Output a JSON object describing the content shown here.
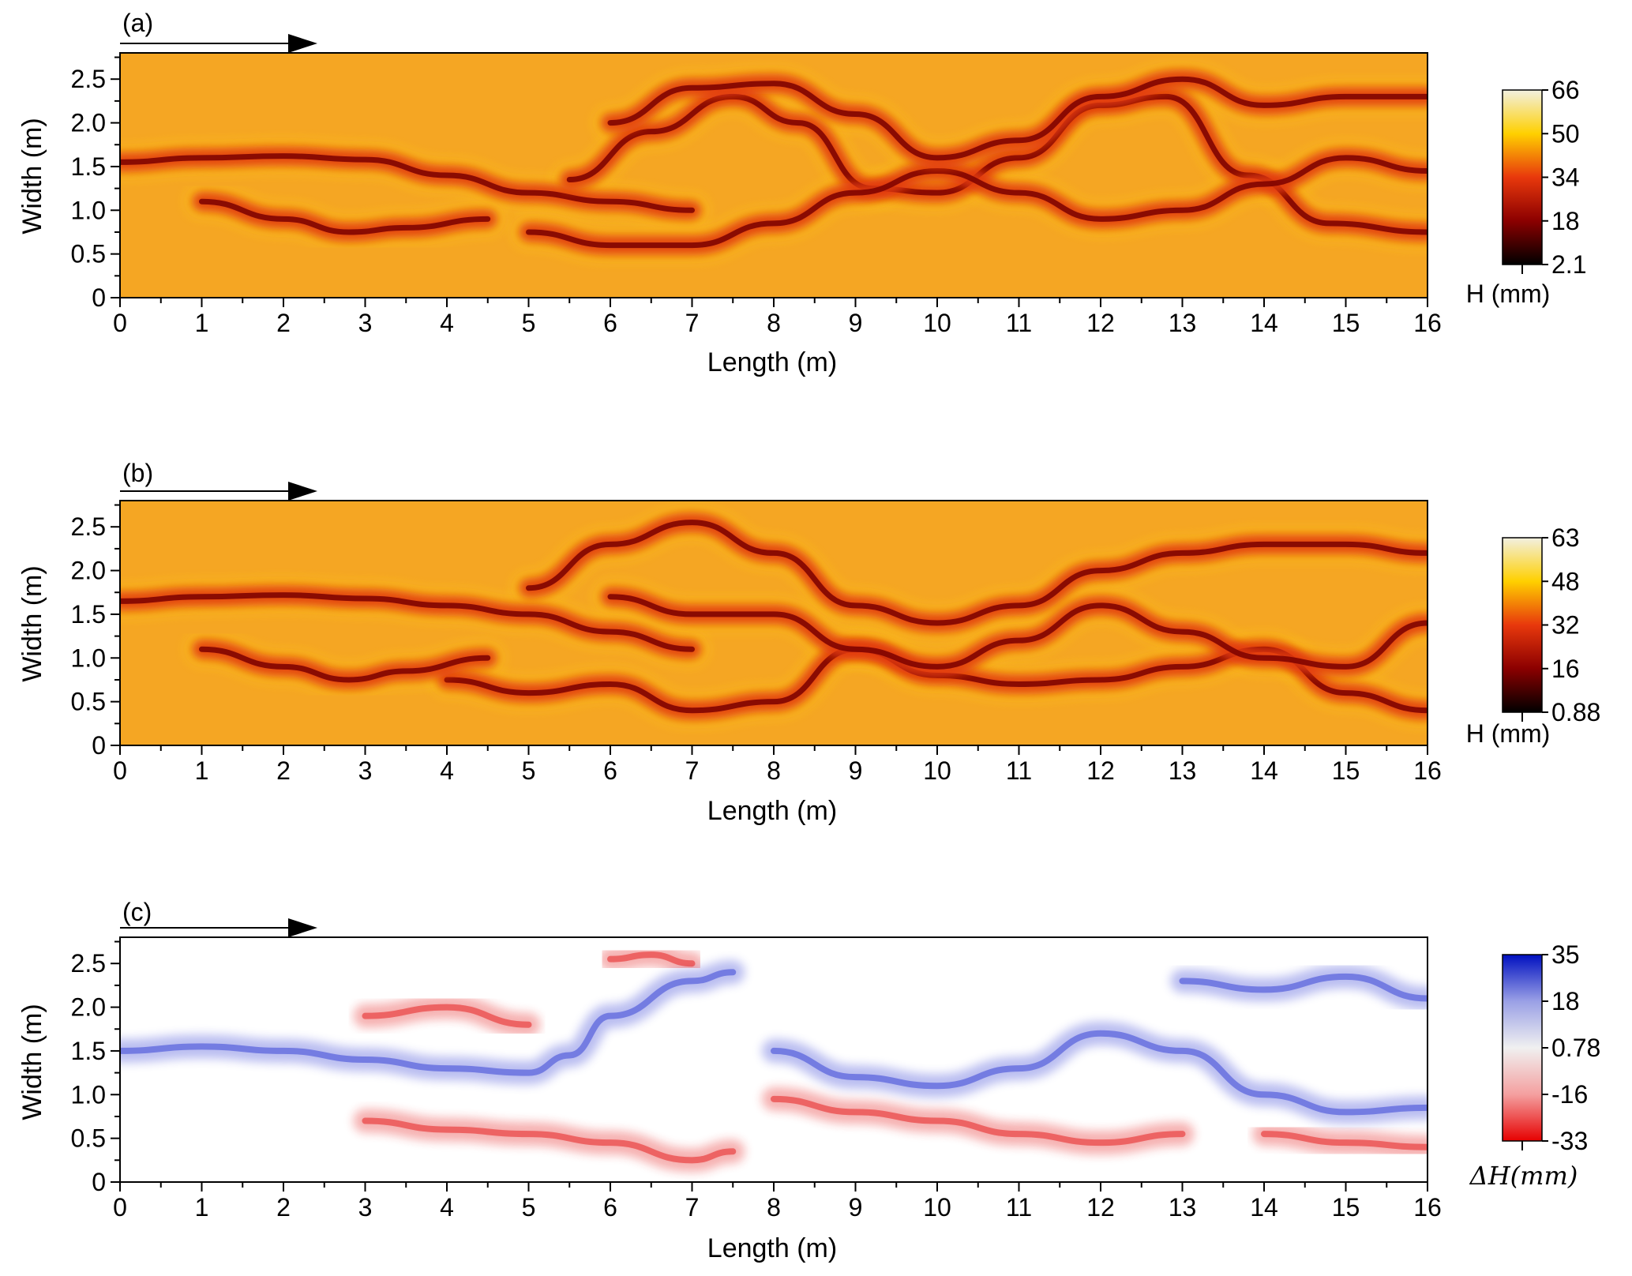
{
  "chart_data": [
    {
      "type": "heatmap",
      "panel_label": "(a)",
      "xlabel": "Length (m)",
      "ylabel": "Width (m)",
      "xlim": [
        0,
        16
      ],
      "ylim": [
        0,
        2.8
      ],
      "xticks": [
        "0",
        "1",
        "2",
        "3",
        "4",
        "5",
        "6",
        "7",
        "8",
        "9",
        "10",
        "11",
        "12",
        "13",
        "14",
        "15",
        "16"
      ],
      "yticks": [
        "0",
        "0.5",
        "1.0",
        "1.5",
        "2.0",
        "2.5"
      ],
      "flow_arrow": true,
      "colorbar": {
        "label": "H (mm)",
        "ticks": [
          "66",
          "50",
          "34",
          "18",
          "2.1"
        ],
        "range": [
          2.1,
          66
        ],
        "colormap": [
          "#000000",
          "#8b0000",
          "#e8380c",
          "#ffd000",
          "#f2f0e0"
        ]
      },
      "background_color": "#f5a623",
      "channels": [
        {
          "x": [
            0,
            1,
            2,
            3,
            4,
            5,
            6,
            7
          ],
          "y": [
            1.55,
            1.6,
            1.62,
            1.58,
            1.4,
            1.2,
            1.1,
            1.0
          ]
        },
        {
          "x": [
            5.5,
            6.5,
            7.5,
            8.3,
            9.2,
            10,
            11,
            12,
            12.8,
            13.8,
            14.8,
            16
          ],
          "y": [
            1.35,
            1.9,
            2.3,
            2.0,
            1.25,
            1.2,
            1.6,
            2.2,
            2.3,
            1.4,
            0.85,
            0.75
          ]
        },
        {
          "x": [
            5,
            6,
            7,
            8,
            9,
            10,
            11,
            12,
            13,
            14,
            15,
            16
          ],
          "y": [
            0.75,
            0.6,
            0.6,
            0.85,
            1.2,
            1.45,
            1.2,
            0.9,
            1.0,
            1.3,
            1.6,
            1.45
          ]
        },
        {
          "x": [
            6,
            7,
            8,
            9,
            10,
            11,
            12,
            13,
            14,
            15,
            16
          ],
          "y": [
            2.0,
            2.4,
            2.45,
            2.1,
            1.6,
            1.8,
            2.3,
            2.5,
            2.2,
            2.3,
            2.3
          ]
        },
        {
          "x": [
            1,
            2,
            2.8,
            3.5,
            4.5
          ],
          "y": [
            1.1,
            0.9,
            0.75,
            0.8,
            0.9
          ]
        }
      ]
    },
    {
      "type": "heatmap",
      "panel_label": "(b)",
      "xlabel": "Length (m)",
      "ylabel": "Width (m)",
      "xlim": [
        0,
        16
      ],
      "ylim": [
        0,
        2.8
      ],
      "xticks": [
        "0",
        "1",
        "2",
        "3",
        "4",
        "5",
        "6",
        "7",
        "8",
        "9",
        "10",
        "11",
        "12",
        "13",
        "14",
        "15",
        "16"
      ],
      "yticks": [
        "0",
        "0.5",
        "1.0",
        "1.5",
        "2.0",
        "2.5"
      ],
      "flow_arrow": true,
      "colorbar": {
        "label": "H (mm)",
        "ticks": [
          "63",
          "48",
          "32",
          "16",
          "0.88"
        ],
        "range": [
          0.88,
          63
        ],
        "colormap": [
          "#000000",
          "#8b0000",
          "#e8380c",
          "#ffd000",
          "#f2f0e0"
        ]
      },
      "background_color": "#f5a623",
      "channels": [
        {
          "x": [
            0,
            1,
            2,
            3,
            4,
            5,
            6,
            7
          ],
          "y": [
            1.65,
            1.7,
            1.72,
            1.68,
            1.6,
            1.5,
            1.3,
            1.1
          ]
        },
        {
          "x": [
            4,
            5,
            6,
            7,
            8,
            9,
            10,
            11,
            12,
            13,
            14,
            15,
            16
          ],
          "y": [
            0.75,
            0.6,
            0.7,
            0.4,
            0.5,
            1.1,
            0.8,
            0.7,
            0.75,
            0.9,
            1.1,
            0.6,
            0.4
          ]
        },
        {
          "x": [
            5,
            6,
            7,
            8,
            9,
            10,
            11,
            12,
            13,
            14,
            15,
            16
          ],
          "y": [
            1.8,
            2.3,
            2.55,
            2.2,
            1.6,
            1.4,
            1.6,
            2.0,
            2.2,
            2.3,
            2.3,
            2.2
          ]
        },
        {
          "x": [
            6,
            7,
            8,
            9,
            10,
            11,
            12,
            13,
            14,
            15,
            16
          ],
          "y": [
            1.7,
            1.5,
            1.5,
            1.1,
            0.9,
            1.2,
            1.6,
            1.3,
            1.0,
            0.9,
            1.4
          ]
        },
        {
          "x": [
            1,
            2,
            2.8,
            3.5,
            4.5
          ],
          "y": [
            1.1,
            0.9,
            0.75,
            0.85,
            1.0
          ]
        }
      ]
    },
    {
      "type": "heatmap",
      "panel_label": "(c)",
      "xlabel": "Length (m)",
      "ylabel": "Width (m)",
      "xlim": [
        0,
        16
      ],
      "ylim": [
        0,
        2.8
      ],
      "xticks": [
        "0",
        "1",
        "2",
        "3",
        "4",
        "5",
        "6",
        "7",
        "8",
        "9",
        "10",
        "11",
        "12",
        "13",
        "14",
        "15",
        "16"
      ],
      "yticks": [
        "0",
        "0.5",
        "1.0",
        "1.5",
        "2.0",
        "2.5"
      ],
      "flow_arrow": true,
      "colorbar": {
        "label": "ΔH(mm)",
        "ticks": [
          "35",
          "18",
          "0.78",
          "-16",
          "-33"
        ],
        "range": [
          -33,
          35
        ],
        "colormap": [
          "#e60000",
          "#f4a0a0",
          "#f0f0f0",
          "#9aa0e6",
          "#0010c0"
        ]
      },
      "background_color": "#ffffff",
      "features": [
        {
          "sign": "positive",
          "x": [
            0,
            1,
            2,
            3,
            4,
            5,
            5.5,
            6,
            7,
            7.5
          ],
          "y": [
            1.5,
            1.55,
            1.5,
            1.4,
            1.3,
            1.25,
            1.45,
            1.9,
            2.3,
            2.4
          ]
        },
        {
          "sign": "positive",
          "x": [
            8,
            9,
            10,
            11,
            12,
            13,
            14,
            15,
            16
          ],
          "y": [
            1.5,
            1.2,
            1.1,
            1.3,
            1.7,
            1.5,
            1.0,
            0.8,
            0.85
          ]
        },
        {
          "sign": "positive",
          "x": [
            13,
            14,
            15,
            16
          ],
          "y": [
            2.3,
            2.2,
            2.35,
            2.1
          ]
        },
        {
          "sign": "negative",
          "x": [
            3,
            4,
            5,
            6,
            7,
            7.5
          ],
          "y": [
            0.7,
            0.6,
            0.55,
            0.45,
            0.25,
            0.35
          ]
        },
        {
          "sign": "negative",
          "x": [
            8,
            9,
            10,
            11,
            12,
            13
          ],
          "y": [
            0.95,
            0.8,
            0.7,
            0.55,
            0.45,
            0.55
          ]
        },
        {
          "sign": "negative",
          "x": [
            14,
            15,
            16
          ],
          "y": [
            0.55,
            0.45,
            0.4
          ]
        },
        {
          "sign": "negative",
          "x": [
            6,
            6.5,
            7
          ],
          "y": [
            2.55,
            2.6,
            2.5
          ]
        },
        {
          "sign": "negative",
          "x": [
            3,
            4,
            5
          ],
          "y": [
            1.9,
            2.0,
            1.8
          ]
        }
      ]
    }
  ]
}
